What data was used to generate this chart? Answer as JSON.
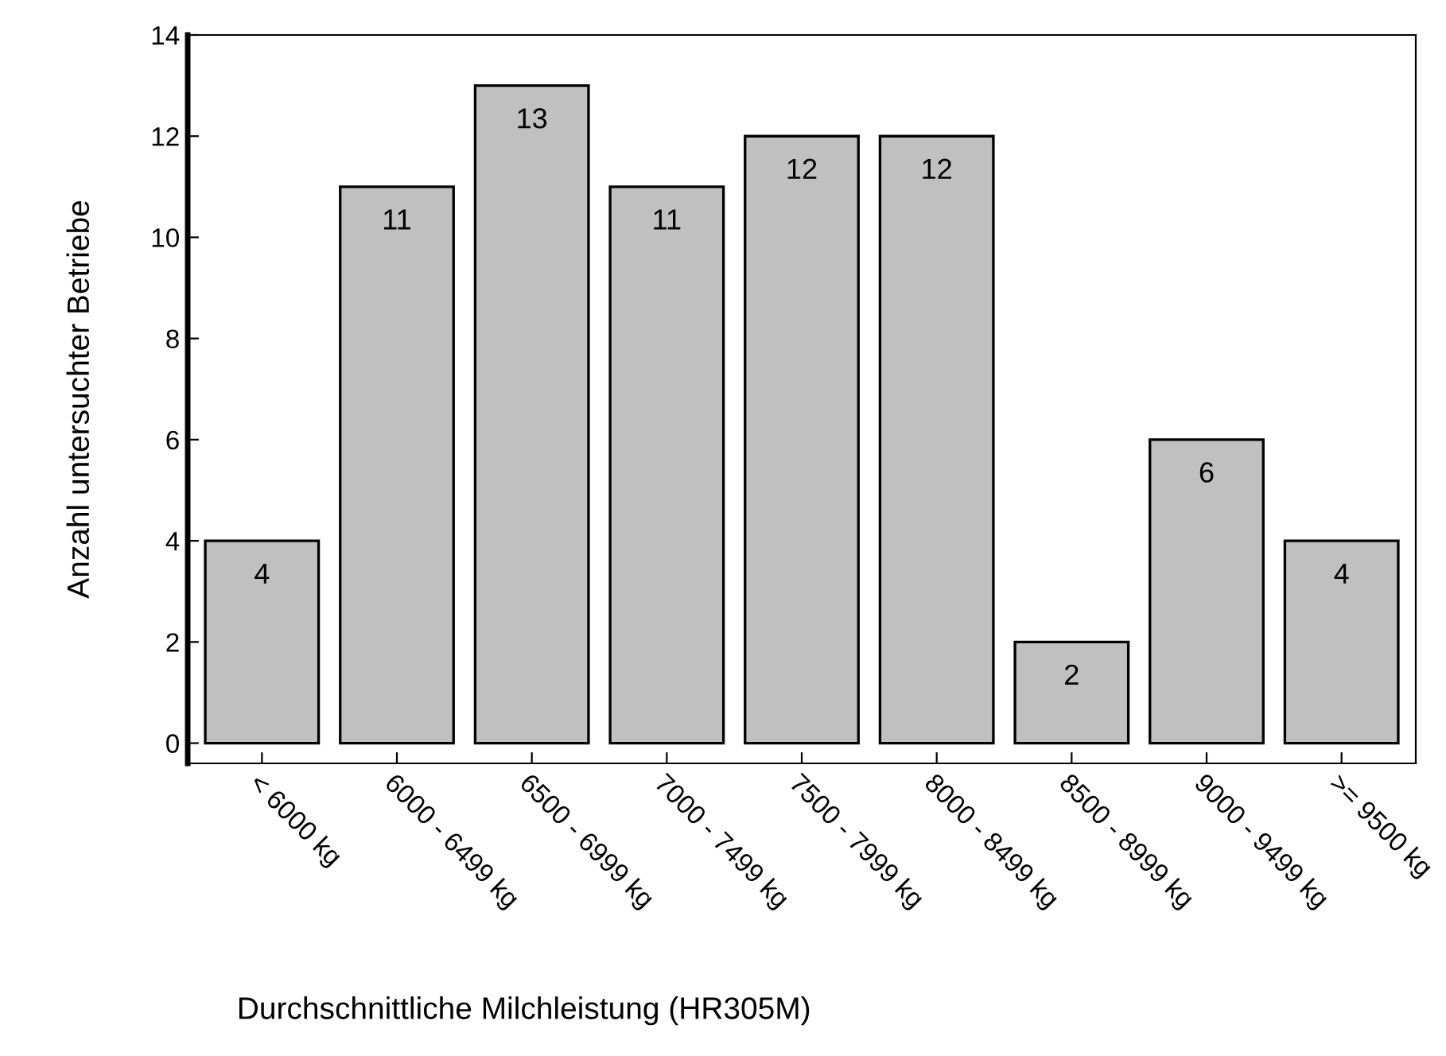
{
  "chart_data": {
    "type": "bar",
    "xlabel": "Durchschnittliche Milchleistung (HR305M)",
    "ylabel": "Anzahl untersuchter Betriebe",
    "categories": [
      "< 6000 kg",
      "6000 - 6499 kg",
      "6500 - 6999 kg",
      "7000 - 7499 kg",
      "7500 - 7999 kg",
      "8000 - 8499 kg",
      "8500 - 8999 kg",
      "9000 - 9499 kg",
      ">= 9500 kg"
    ],
    "values": [
      4,
      11,
      13,
      11,
      12,
      12,
      2,
      6,
      4
    ],
    "color": "#c0c0c0",
    "ylim": [
      -0.4,
      14
    ],
    "yticks": [
      0,
      2,
      4,
      6,
      8,
      10,
      12,
      14
    ],
    "grid": false,
    "data_labels": true
  }
}
